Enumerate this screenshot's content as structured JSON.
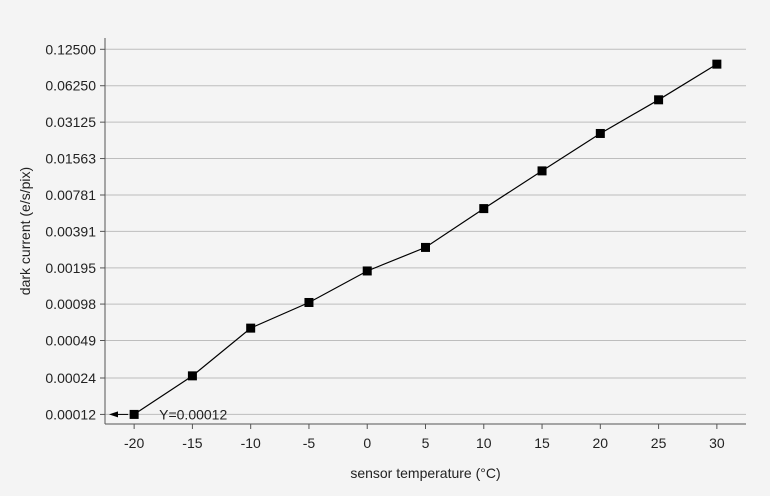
{
  "chart_data": {
    "type": "line",
    "title": "",
    "xlabel": "sensor temperature (°C)",
    "ylabel": "dark current (e/s/pix)",
    "x": [
      -20,
      -15,
      -10,
      -5,
      0,
      5,
      10,
      15,
      20,
      25,
      30
    ],
    "series": [
      {
        "values": [
          0.00012,
          0.00025,
          0.00062,
          0.00101,
          0.00184,
          0.00288,
          0.00603,
          0.01236,
          0.02519,
          0.0478,
          0.09425
        ]
      }
    ],
    "x_ticks": [
      "-20",
      "-15",
      "-10",
      "-5",
      "0",
      "5",
      "10",
      "15",
      "20",
      "25",
      "30"
    ],
    "y_ticks": [
      "0.00012",
      "0.00024",
      "0.00049",
      "0.00098",
      "0.00195",
      "0.00391",
      "0.00781",
      "0.01563",
      "0.03125",
      "0.06250",
      "0.12500"
    ],
    "y_scale": "log2",
    "xlim": [
      -22.5,
      32.5
    ],
    "ylim": [
      0.0001,
      0.155
    ],
    "grid": "horizontal",
    "marker": "square",
    "line_color": "#000000",
    "marker_color": "#000000",
    "annotation": {
      "text": "Y=0.00012",
      "x": -20,
      "y": 0.00012,
      "arrow": "left"
    }
  }
}
